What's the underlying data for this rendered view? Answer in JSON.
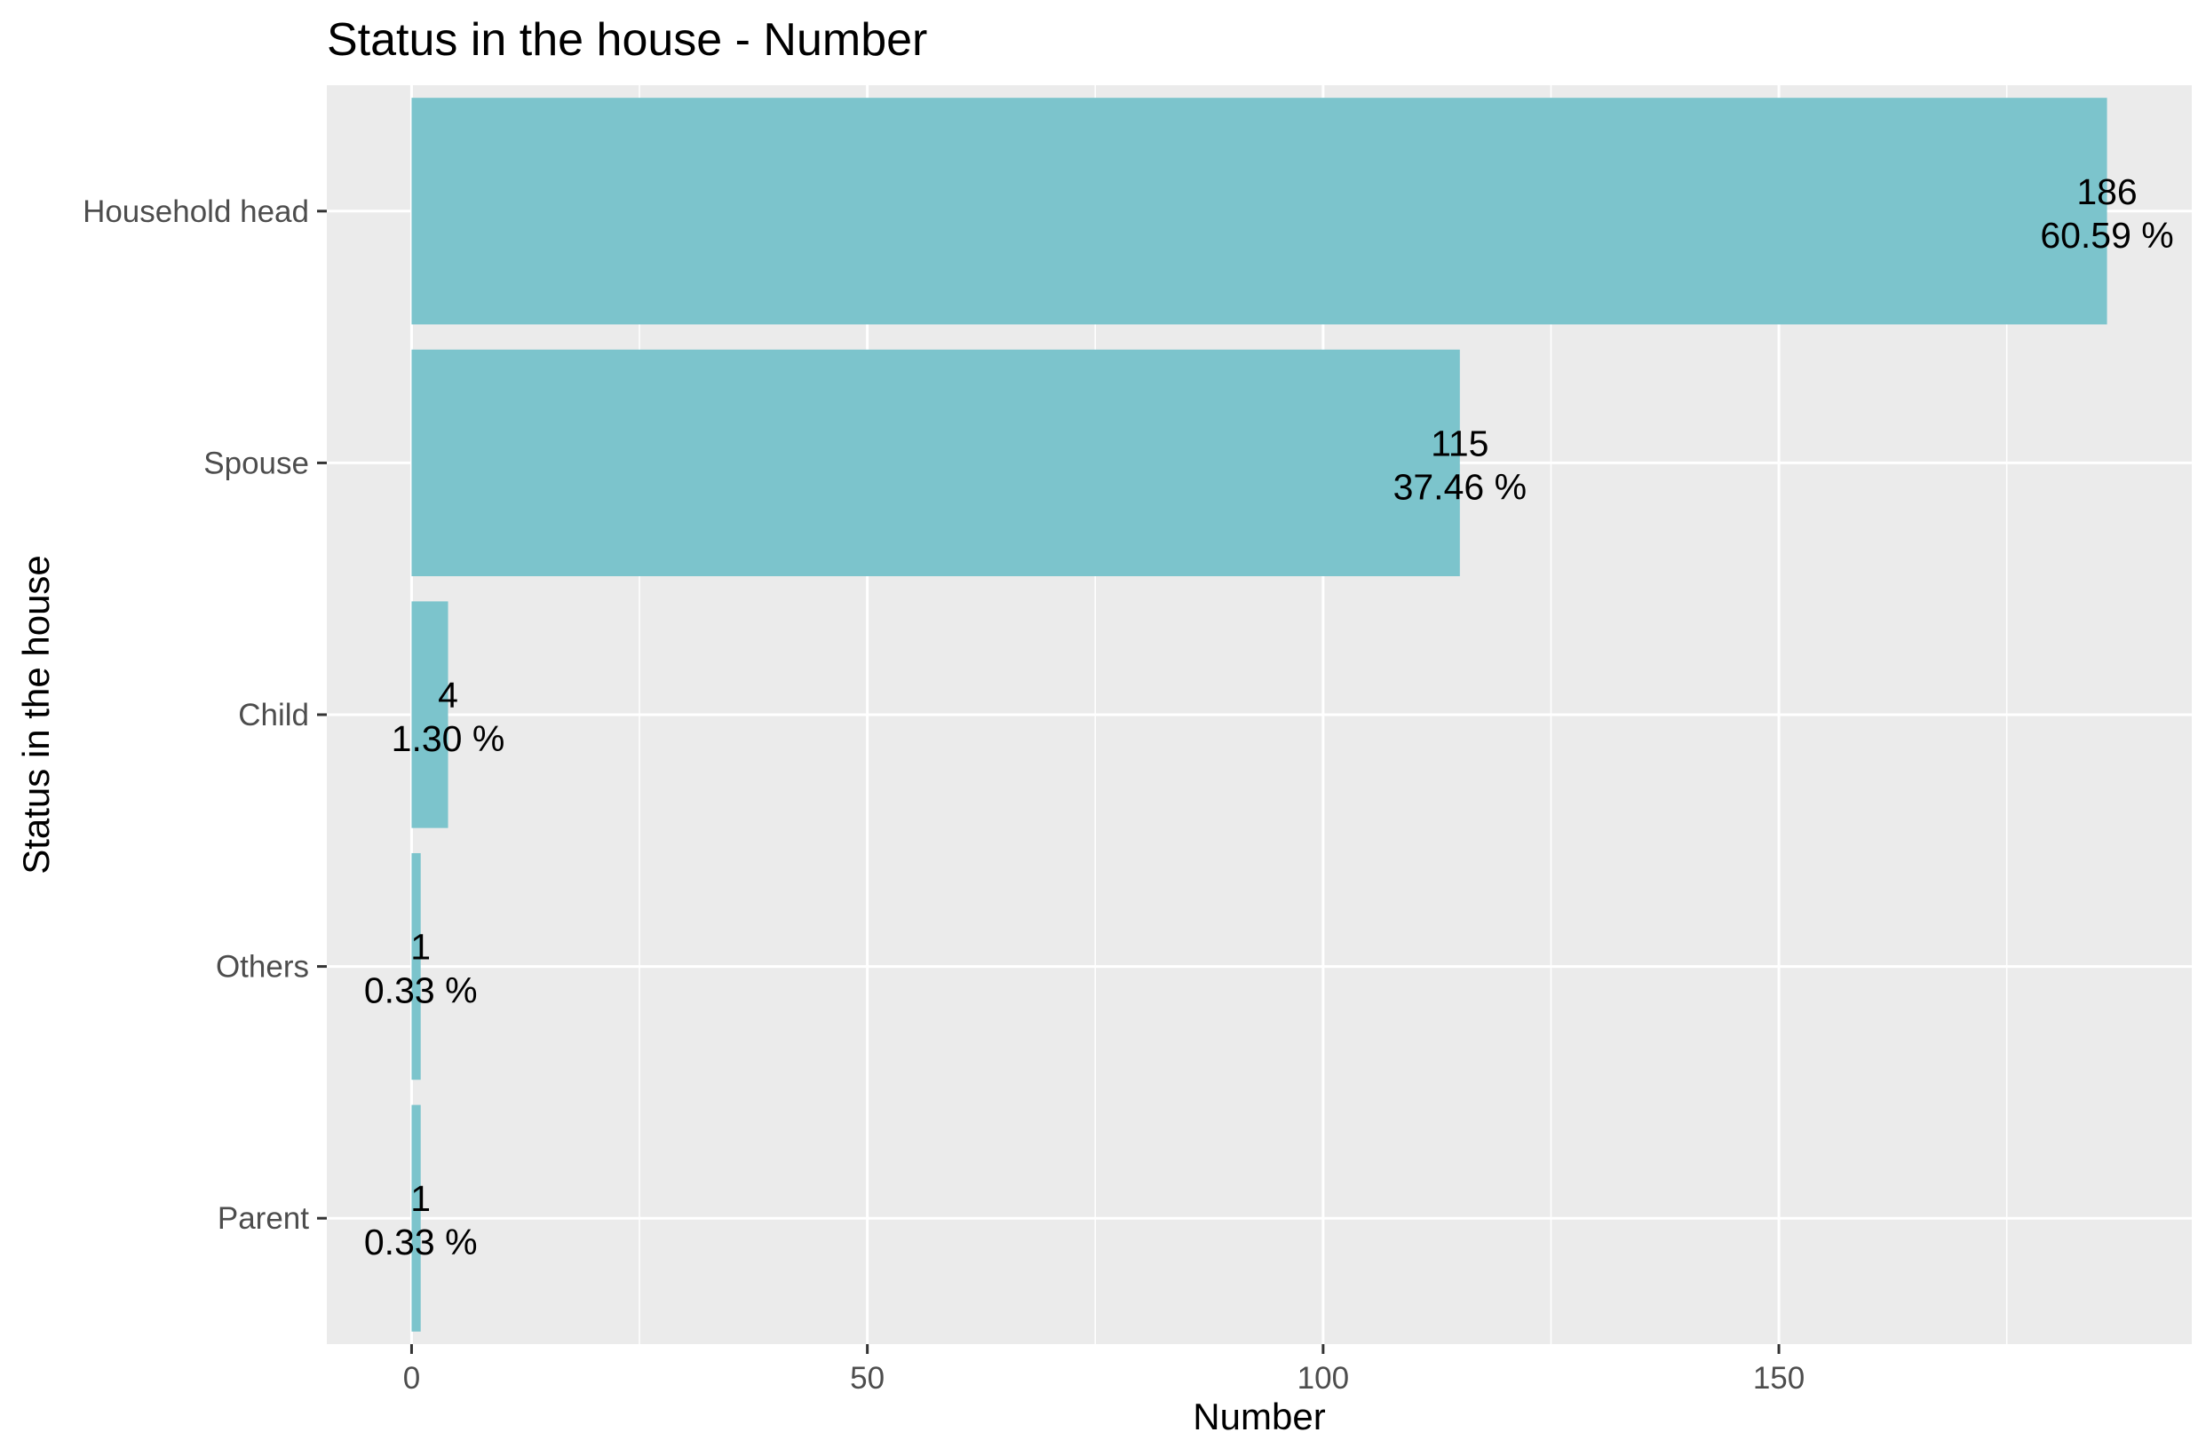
{
  "chart_data": {
    "type": "bar",
    "orientation": "horizontal",
    "title": "Status in the house - Number",
    "xlabel": "Number",
    "ylabel": "Status in the house",
    "categories": [
      "Household head",
      "Spouse",
      "Child",
      "Others",
      "Parent"
    ],
    "values": [
      186,
      115,
      4,
      1,
      1
    ],
    "percent_labels": [
      "60.59 %",
      "37.46 %",
      "1.30 %",
      "0.33 %",
      "0.33 %"
    ],
    "xticks": [
      0,
      50,
      100,
      150
    ],
    "xlim": [
      -9.3,
      195.3
    ],
    "grid": true,
    "legend": "none",
    "colors": {
      "bar": "#7cc4cc",
      "panel": "#ebebeb",
      "grid": "#ffffff",
      "tick": "#4d4d4d",
      "text": "#000000"
    }
  }
}
